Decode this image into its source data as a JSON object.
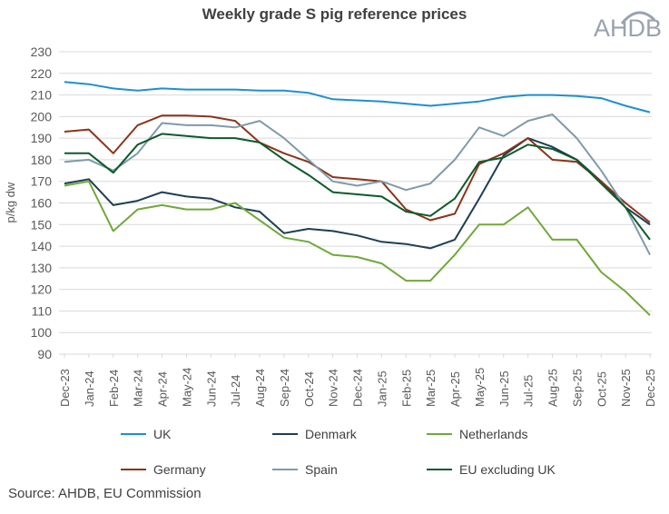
{
  "chart_data": {
    "type": "line",
    "title": "Weekly grade S pig reference prices",
    "ylabel": "p/kg dw",
    "xlabel": "",
    "ylim": [
      90,
      230
    ],
    "yticks": [
      90,
      100,
      110,
      120,
      130,
      140,
      150,
      160,
      170,
      180,
      190,
      200,
      210,
      220,
      230
    ],
    "grid": true,
    "legend": "bottom",
    "categories": [
      "Dec-23",
      "Jan-24",
      "Feb-24",
      "Mar-24",
      "Apr-24",
      "May-24",
      "Jun-24",
      "Jul-24",
      "Aug-24",
      "Sep-24",
      "Oct-24",
      "Nov-24",
      "Dec-24",
      "Jan-25",
      "Feb-25",
      "Mar-25",
      "Apr-25",
      "May-25",
      "Jun-25",
      "Jul-25",
      "Aug-25",
      "Sep-25",
      "Oct-25",
      "Nov-25",
      "Dec-25"
    ],
    "series": [
      {
        "name": "UK",
        "color": "#1f8fd1",
        "values": [
          216,
          215,
          213,
          212,
          213,
          212.5,
          212.5,
          212.5,
          212,
          212,
          211,
          208,
          207.5,
          207,
          206,
          205,
          206,
          207,
          209,
          210,
          210,
          209.5,
          208.5,
          205,
          202
        ]
      },
      {
        "name": "Denmark",
        "color": "#1d3e52",
        "values": [
          169,
          171,
          159,
          161,
          165,
          163,
          162,
          158,
          156,
          146,
          148,
          147,
          145,
          142,
          141,
          139,
          143,
          162,
          182,
          190,
          186,
          180,
          170,
          158,
          150
        ]
      },
      {
        "name": "Netherlands",
        "color": "#70a83b",
        "values": [
          168,
          170,
          147,
          157,
          159,
          157,
          157,
          160,
          152,
          144,
          142,
          136,
          135,
          132,
          124,
          124,
          136,
          150,
          150,
          158,
          143,
          143,
          128,
          119,
          108
        ]
      },
      {
        "name": "Germany",
        "color": "#8b3419",
        "values": [
          193,
          194,
          183,
          196,
          200.5,
          200.5,
          200,
          198,
          188,
          183,
          179,
          172,
          171,
          170,
          157,
          152,
          155,
          178,
          183,
          190,
          180,
          179,
          170,
          160,
          151
        ]
      },
      {
        "name": "Spain",
        "color": "#7f9aab",
        "values": [
          179,
          180,
          175,
          183,
          197,
          196,
          196,
          195,
          198,
          190,
          180,
          170,
          168,
          170,
          166,
          169,
          180,
          195,
          191,
          198,
          201,
          190,
          175,
          158,
          136
        ]
      },
      {
        "name": "EU excluding UK",
        "color": "#0d5a2a",
        "values": [
          183,
          183,
          174,
          187,
          192,
          191,
          190,
          190,
          188,
          180,
          173,
          165,
          164,
          163,
          156,
          154,
          162,
          179,
          181,
          187,
          185,
          180,
          169,
          158,
          143
        ]
      }
    ]
  },
  "logo": "AHDB",
  "source": "Source: AHDB, EU Commission"
}
